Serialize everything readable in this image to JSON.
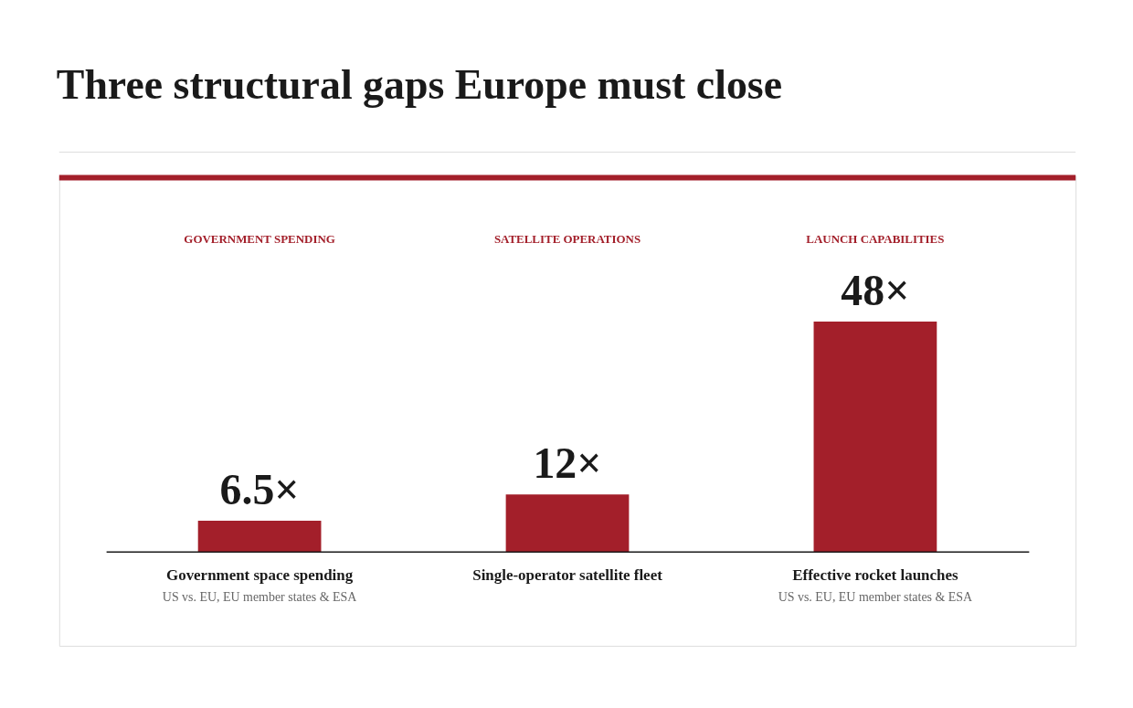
{
  "chart_data": {
    "type": "bar",
    "title": "Three structural gaps Europe must close",
    "categories": [
      "Government space spending\nUS vs. EU, EU member states & ESA",
      "Single-operator satellite fleet",
      "Effective rocket launches\nUS vs. EU, EU member states & ESA"
    ],
    "values": [
      6.5,
      12,
      48
    ],
    "color": "#a31f2a",
    "value_labels": [
      "6.5×",
      "12×",
      "48×"
    ],
    "annotations": [
      "GOVERNMENT SPENDING",
      "SATELLITE OPERATIONS",
      "LAUNCH CAPABILITIES"
    ]
  }
}
